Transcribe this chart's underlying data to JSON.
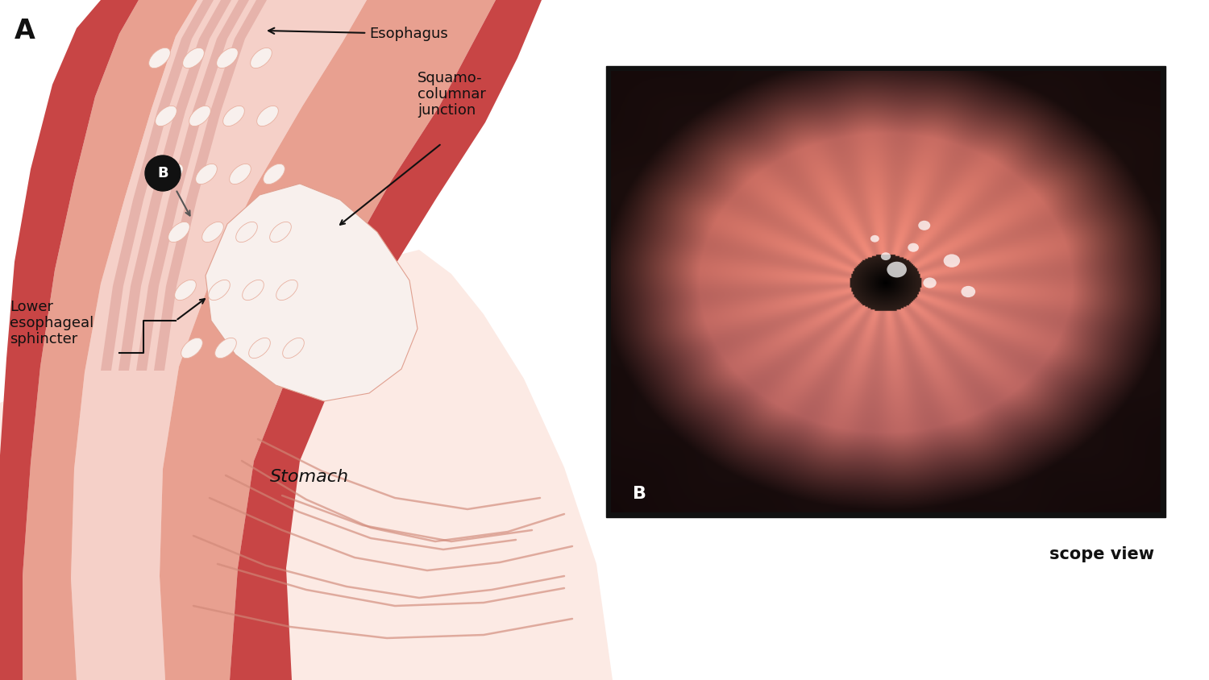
{
  "bg_color": "#ffffff",
  "label_A": "A",
  "label_B_inset": "B",
  "label_esophagus": "Esophagus",
  "label_squamo_line1": "Squamo-",
  "label_squamo_line2": "columnar",
  "label_squamo_line3": "junction",
  "label_lower_line1": "Lower",
  "label_lower_line2": "esophageal",
  "label_lower_line3": "sphincter",
  "label_stomach": "Stomach",
  "label_scope": "scope view",
  "font_color": "#111111",
  "annotation_color": "#111111",
  "colors": {
    "red_outer": "#c84545",
    "pink_tube": "#e8a090",
    "pink_light": "#f5d0c8",
    "pink_vlight": "#fceae4",
    "white_tissue": "#faf5f3",
    "lace_white": "#f8f0ed",
    "stomach_pink": "#f0c8bc",
    "muscle_stripe": "#d49088"
  }
}
